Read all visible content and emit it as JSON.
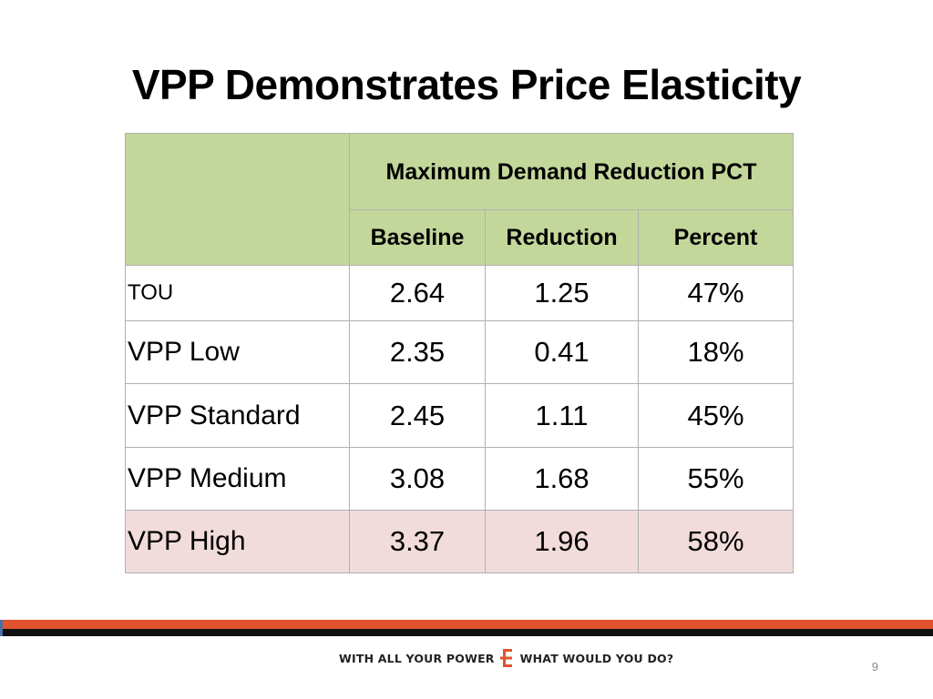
{
  "slide": {
    "title": "VPP Demonstrates Price Elasticity",
    "page_number": "9"
  },
  "table": {
    "group_header": "Maximum Demand Reduction PCT",
    "columns": [
      "Baseline",
      "Reduction",
      "Percent"
    ],
    "rows": [
      {
        "label": "TOU",
        "baseline": "2.64",
        "reduction": "1.25",
        "percent": "47%"
      },
      {
        "label": "VPP Low",
        "baseline": "2.35",
        "reduction": "0.41",
        "percent": "18%"
      },
      {
        "label": "VPP Standard",
        "baseline": "2.45",
        "reduction": "1.11",
        "percent": "45%"
      },
      {
        "label": "VPP Medium",
        "baseline": "3.08",
        "reduction": "1.68",
        "percent": "55%"
      },
      {
        "label": "VPP High",
        "baseline": "3.37",
        "reduction": "1.96",
        "percent": "58%"
      }
    ],
    "colors": {
      "header_fill": "#c4d79b",
      "highlight_fill": "#f2dcdb"
    }
  },
  "footer": {
    "tagline_left": "WITH ALL YOUR POWER",
    "tagline_right": "WHAT WOULD YOU DO?",
    "logo_icon": "e-logo-icon",
    "colors": {
      "orange": "#e0532e",
      "black": "#111111"
    }
  }
}
